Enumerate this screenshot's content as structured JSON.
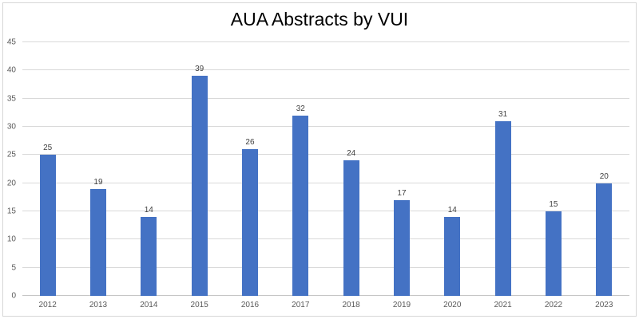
{
  "chart_data": {
    "type": "bar",
    "title": "AUA Abstracts by VUI",
    "categories": [
      "2012",
      "2013",
      "2014",
      "2015",
      "2016",
      "2017",
      "2018",
      "2019",
      "2020",
      "2021",
      "2022",
      "2023"
    ],
    "values": [
      25,
      19,
      14,
      39,
      26,
      32,
      24,
      17,
      14,
      31,
      15,
      20
    ],
    "data_labels_shown": true,
    "xlabel": "",
    "ylabel": "",
    "ylim": [
      0,
      45
    ],
    "yticks": [
      0,
      5,
      10,
      15,
      20,
      25,
      30,
      35,
      40,
      45
    ],
    "grid": "horizontal",
    "legend": "none",
    "colors": {
      "bar": "#4472C4",
      "gridline": "#D9D9D9",
      "axis_labels": "#595959",
      "data_labels": "#404040",
      "title": "#000000",
      "frame_border": "#D6D6D6",
      "background": "#FFFFFF"
    }
  }
}
